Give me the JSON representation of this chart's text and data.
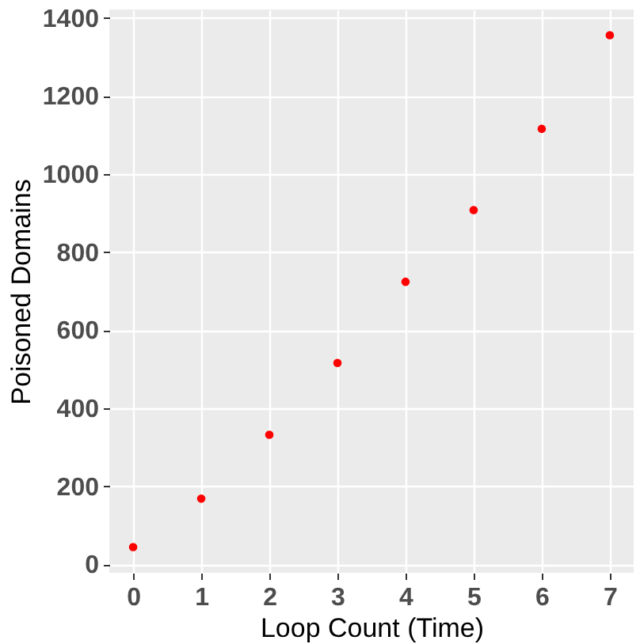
{
  "chart_data": {
    "type": "scatter",
    "xlabel": "Loop Count (Time)",
    "ylabel": "Poisoned Domains",
    "x": [
      0,
      1,
      2,
      3,
      4,
      5,
      6,
      7
    ],
    "series": [
      {
        "color": "#ff0000",
        "values": [
          44,
          168,
          332,
          516,
          724,
          908,
          1116,
          1356
        ]
      }
    ],
    "xlim": [
      -0.35,
      7.35
    ],
    "xticks": [
      0,
      1,
      2,
      3,
      4,
      5,
      6,
      7
    ],
    "ylim": [
      -22,
      1422
    ],
    "yticks": [
      0,
      200,
      400,
      600,
      800,
      1000,
      1200,
      1400
    ],
    "grid": true,
    "marker": "circle"
  }
}
